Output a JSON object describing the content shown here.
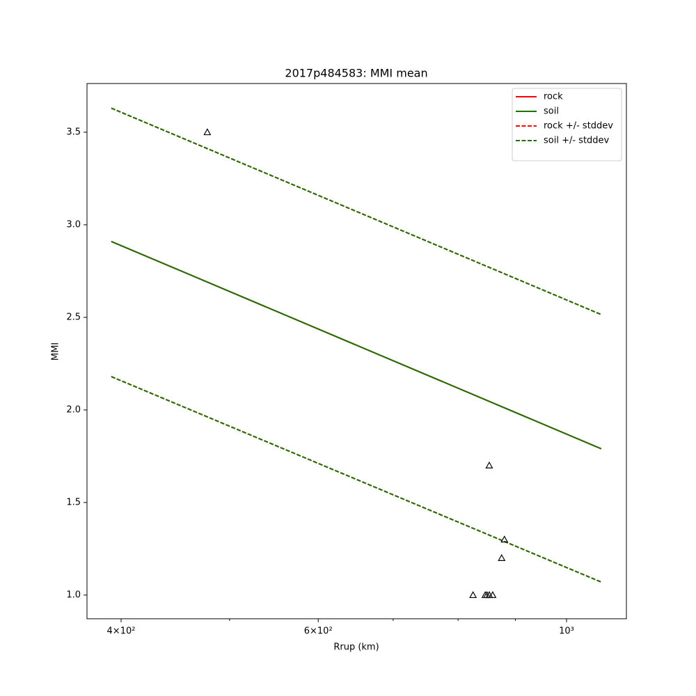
{
  "chart_data": {
    "type": "line",
    "title": "2017p484583: MMI mean",
    "x_label": "Rrup (km)",
    "y_label": "MMI",
    "xscale": "log",
    "xlim": [
      372.9,
      1131
    ],
    "ylim": [
      0.872,
      3.763
    ],
    "xticks": [
      {
        "value": 400,
        "label": "4×10²"
      },
      {
        "value": 600,
        "label": "6×10²"
      },
      {
        "value": 1000,
        "label": "10³"
      }
    ],
    "xminorticks": [
      500,
      700,
      800,
      900
    ],
    "yticks": [
      {
        "value": 1,
        "label": "1.0"
      },
      {
        "value": 1.5,
        "label": "1.5"
      },
      {
        "value": 2,
        "label": "2.0"
      },
      {
        "value": 2.5,
        "label": "2.5"
      },
      {
        "value": 3,
        "label": "3.0"
      },
      {
        "value": 3.5,
        "label": "3.5"
      }
    ],
    "legend": "upper right",
    "x": [
      392,
      1074
    ],
    "series": [
      {
        "name": "rock",
        "color": "#ff0000",
        "linestyle": "solid",
        "values": [
          2.91,
          1.79
        ]
      },
      {
        "name": "soil",
        "color": "#1f7000",
        "linestyle": "solid",
        "values": [
          2.91,
          1.79
        ]
      },
      {
        "name": "rock +/- stddev",
        "color": "#ff0000",
        "linestyle": "dashed",
        "values": [
          3.63,
          2.515
        ],
        "values_lower": [
          2.18,
          1.07
        ]
      },
      {
        "name": "soil +/- stddev",
        "color": "#1f7000",
        "linestyle": "dashed",
        "values": [
          3.63,
          2.515
        ],
        "values_lower": [
          2.18,
          1.07
        ]
      }
    ],
    "points": {
      "marker": "triangle",
      "color": "#000000",
      "x": [
        477.6,
        853,
        880,
        875,
        825,
        846,
        849,
        853,
        859
      ],
      "values": [
        3.5,
        1.7,
        1.3,
        1.2,
        1.0,
        1.0,
        1.0,
        1.0,
        1.0
      ]
    }
  }
}
